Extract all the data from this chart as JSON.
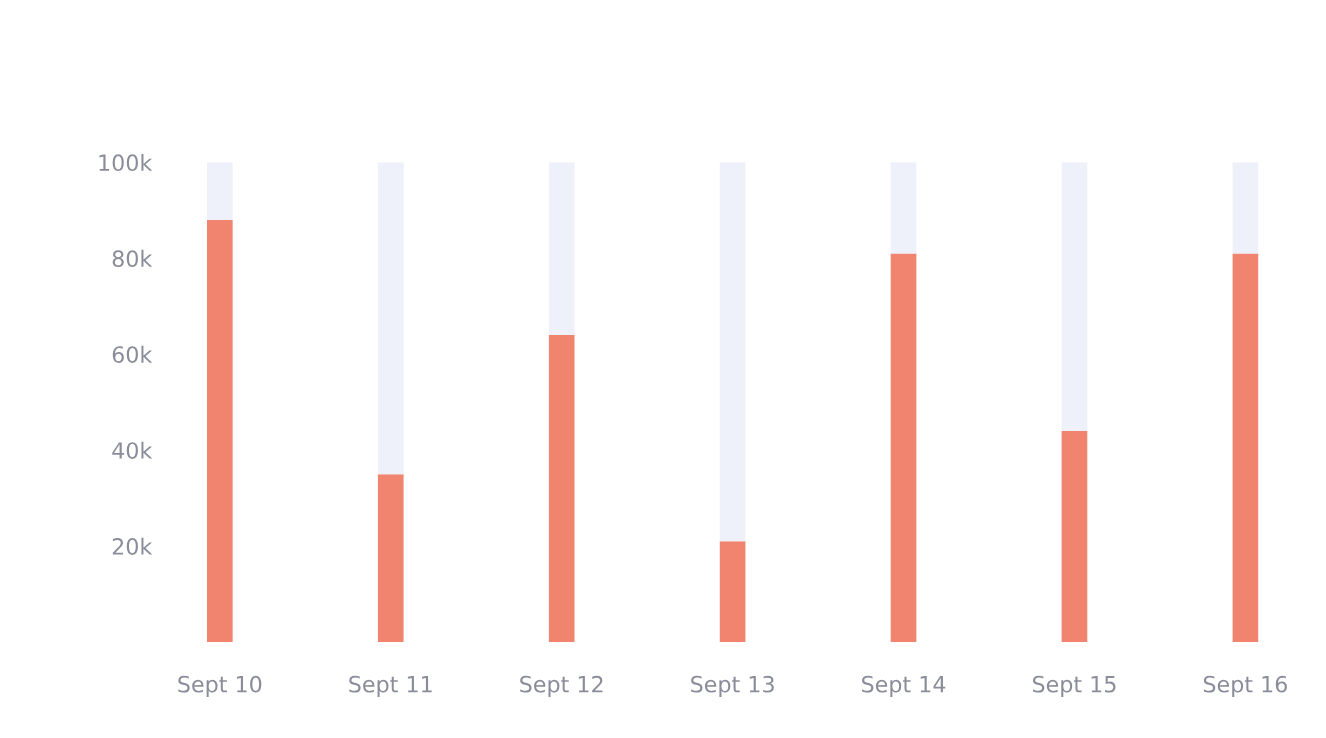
{
  "chart_data": {
    "type": "bar",
    "stacked": true,
    "categories": [
      "Sept 10",
      "Sept 11",
      "Sept 12",
      "Sept 13",
      "Sept 14",
      "Sept 15",
      "Sept 16"
    ],
    "series": [
      {
        "color": "#f0846e",
        "values": [
          88000,
          35000,
          64000,
          21000,
          81000,
          44000,
          81000
        ]
      },
      {
        "color": "#eef0fa",
        "values": [
          12000,
          65000,
          36000,
          79000,
          19000,
          56000,
          19000
        ]
      }
    ],
    "ylim": [
      0,
      100000
    ],
    "yticks": [
      {
        "value": 20000,
        "label": "20k"
      },
      {
        "value": 40000,
        "label": "40k"
      },
      {
        "value": 60000,
        "label": "60k"
      },
      {
        "value": 80000,
        "label": "80k"
      },
      {
        "value": 100000,
        "label": "100k"
      }
    ],
    "grid": false,
    "legend": false
  }
}
